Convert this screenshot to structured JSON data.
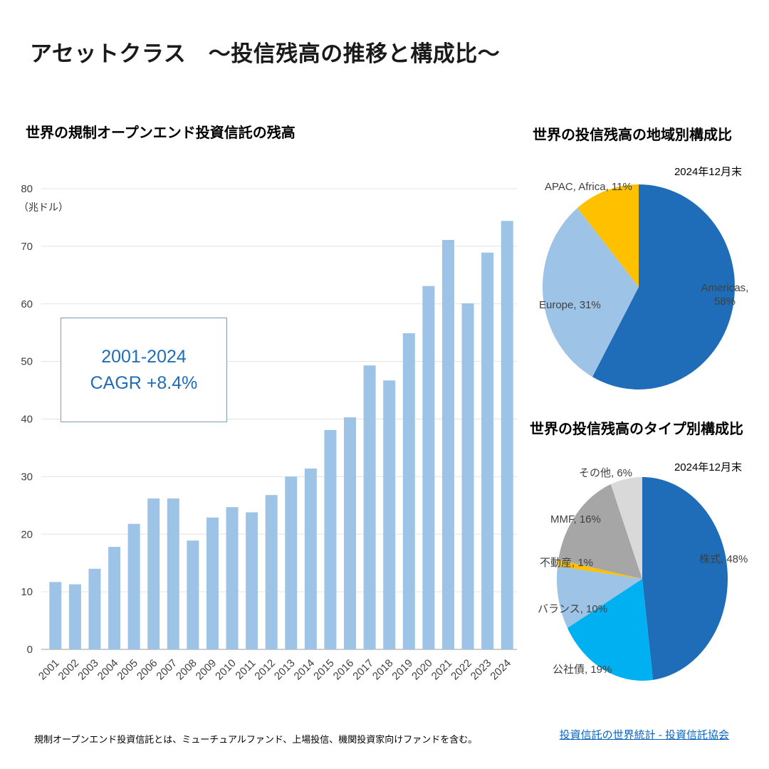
{
  "page": {
    "title": "アセットクラス　～投信残高の推移と構成比～",
    "footnote": "規制オープンエンド投資信託とは、ミューチュアルファンド、上場投信、機関投資家向けファンドを含む。",
    "source_link": "投資信託の世界統計 - 投資信託協会"
  },
  "colors": {
    "bar": "#9DC3E6",
    "annotation_text": "#1F6DB8",
    "link": "#0563C1",
    "dark_blue": "#1F6DB8",
    "light_blue": "#9DC3E6",
    "cyan": "#00B0F0",
    "yellow": "#FFC000",
    "gray": "#A6A6A6",
    "light_gray": "#D9D9D9"
  },
  "bar_chart": {
    "title": "世界の規制オープンエンド投資信託の残高",
    "annotation": {
      "line1": "2001-2024",
      "line2": "CAGR +8.4%"
    }
  },
  "pie_region": {
    "title": "世界の投信残高の地域別構成比",
    "date": "2024年12月末"
  },
  "pie_type": {
    "title": "世界の投信残高のタイプ別構成比",
    "date": "2024年12月末"
  },
  "chart_data": [
    {
      "type": "bar",
      "title": "世界の規制オープンエンド投資信託の残高",
      "categories": [
        "2001",
        "2002",
        "2003",
        "2004",
        "2005",
        "2006",
        "2007",
        "2008",
        "2009",
        "2010",
        "2011",
        "2012",
        "2013",
        "2014",
        "2015",
        "2016",
        "2017",
        "2018",
        "2019",
        "2020",
        "2021",
        "2022",
        "2023",
        "2024"
      ],
      "values": [
        11.7,
        11.3,
        14.0,
        17.8,
        21.8,
        26.2,
        26.2,
        18.9,
        22.9,
        24.7,
        23.8,
        26.8,
        30.0,
        31.4,
        38.1,
        40.3,
        49.3,
        46.7,
        54.9,
        63.1,
        71.1,
        60.1,
        68.9,
        74.4
      ],
      "xlabel": "",
      "ylabel": "（兆ドル）",
      "ylim": [
        0,
        80
      ],
      "yticks": [
        0,
        10,
        20,
        30,
        40,
        50,
        60,
        70,
        80
      ],
      "grid": true,
      "annotations": [
        "2001-2024 CAGR +8.4%"
      ]
    },
    {
      "type": "pie",
      "title": "世界の投信残高の地域別構成比",
      "as_of": "2024年12月末",
      "labels": [
        "Americas",
        "Europe",
        "APAC, Africa"
      ],
      "values": [
        58,
        31,
        11
      ],
      "colors": [
        "#1F6DB8",
        "#9DC3E6",
        "#FFC000"
      ]
    },
    {
      "type": "pie",
      "title": "世界の投信残高のタイプ別構成比",
      "as_of": "2024年12月末",
      "labels": [
        "株式",
        "公社債",
        "バランス",
        "不動産",
        "MMF",
        "その他"
      ],
      "values": [
        48,
        19,
        10,
        1,
        16,
        6
      ],
      "colors": [
        "#1F6DB8",
        "#00B0F0",
        "#9DC3E6",
        "#FFC000",
        "#A6A6A6",
        "#D9D9D9"
      ]
    }
  ]
}
